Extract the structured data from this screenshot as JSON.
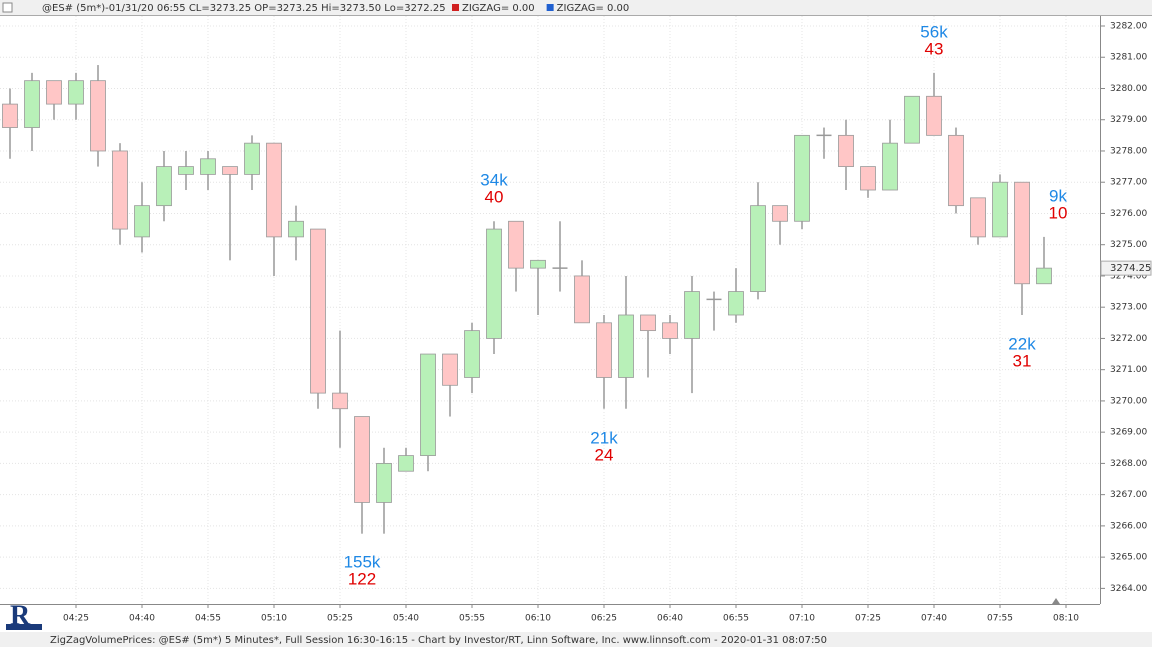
{
  "chart_data": {
    "type": "candlestick",
    "header": "@ES# (5m*)-01/31/20 06:55 CL=3273.25 OP=3273.25 Hi=3273.50 Lo=3272.25",
    "legend": [
      {
        "name": "ZIGZAG= 0.00",
        "color": "#d02020"
      },
      {
        "name": "ZIGZAG= 0.00",
        "color": "#2060d0"
      }
    ],
    "footer": "ZigZagVolumePrices: @ES# (5m*) 5 Minutes*, Full Session 16:30-16:15 - Chart by Investor/RT, Linn Software, Inc. www.linnsoft.com - 2020-01-31 08:07:50",
    "categories": [
      null,
      null,
      null,
      "04:25",
      null,
      null,
      "04:40",
      null,
      null,
      "04:55",
      null,
      null,
      "05:10",
      null,
      null,
      "05:25",
      null,
      null,
      "05:40",
      null,
      null,
      "05:55",
      null,
      null,
      "06:10",
      null,
      null,
      "06:25",
      null,
      null,
      "06:40",
      null,
      null,
      "06:55",
      null,
      null,
      "07:10",
      null,
      null,
      "07:25",
      null,
      null,
      "07:40",
      null,
      null,
      "07:55",
      null,
      null,
      "08:10"
    ],
    "open": [
      3279.5,
      3278.75,
      3280.25,
      3279.5,
      3280.25,
      3278.0,
      3275.25,
      3276.25,
      3277.25,
      3277.25,
      3277.5,
      3277.25,
      3278.25,
      3275.25,
      3275.5,
      3270.25,
      3269.5,
      3266.75,
      3267.75,
      3268.25,
      3271.5,
      3270.75,
      3272.0,
      3275.75,
      3274.25,
      3274.25,
      3274.0,
      3272.5,
      3270.75,
      3272.75,
      3272.5,
      3272.0,
      3273.25,
      3272.75,
      3273.5,
      3276.25,
      3275.75,
      3278.5,
      3278.5,
      3277.5,
      3276.75,
      3278.25,
      3279.75,
      3278.5,
      3276.5,
      3275.25,
      3277.0,
      3273.75,
      null
    ],
    "high": [
      3280.0,
      3280.5,
      3280.25,
      3280.5,
      3280.75,
      3278.25,
      3277.0,
      3278.0,
      3278.0,
      3278.0,
      3277.5,
      3278.5,
      3278.25,
      3276.25,
      3275.5,
      3272.25,
      3269.5,
      3268.5,
      3268.5,
      3271.5,
      3271.5,
      3272.5,
      3275.75,
      3275.75,
      3274.5,
      3275.75,
      3274.5,
      3272.75,
      3274.0,
      3272.75,
      3272.75,
      3274.0,
      3273.5,
      3274.25,
      3277.0,
      3276.25,
      3278.5,
      3278.75,
      3279.0,
      3277.5,
      3279.0,
      3279.75,
      3280.5,
      3278.75,
      3276.5,
      3277.25,
      3277.0,
      3275.25,
      null
    ],
    "low": [
      3277.75,
      3278.0,
      3279.0,
      3279.0,
      3277.5,
      3275.0,
      3274.75,
      3275.75,
      3276.75,
      3276.75,
      3274.5,
      3276.75,
      3274.0,
      3274.5,
      3269.75,
      3268.5,
      3265.75,
      3265.75,
      3267.75,
      3267.75,
      3269.5,
      3270.25,
      3271.5,
      3273.5,
      3272.75,
      3273.5,
      3272.5,
      3269.75,
      3269.75,
      3270.75,
      3271.5,
      3270.25,
      3272.25,
      3272.5,
      3273.25,
      3275.0,
      3275.5,
      3277.75,
      3276.75,
      3276.5,
      3276.75,
      3278.25,
      3278.5,
      3276.0,
      3275.0,
      3275.25,
      3272.75,
      3273.75,
      null
    ],
    "close": [
      3278.75,
      3280.25,
      3279.5,
      3280.25,
      3278.0,
      3275.5,
      3276.25,
      3277.5,
      3277.5,
      3277.75,
      3277.25,
      3278.25,
      3275.25,
      3275.75,
      3270.25,
      3269.75,
      3266.75,
      3268.0,
      3268.25,
      3271.5,
      3270.5,
      3272.25,
      3275.5,
      3274.25,
      3274.5,
      3274.25,
      3272.5,
      3270.75,
      3272.75,
      3272.25,
      3272.0,
      3273.5,
      3273.25,
      3273.5,
      3276.25,
      3275.75,
      3278.5,
      3278.5,
      3277.5,
      3276.75,
      3278.25,
      3279.75,
      3278.5,
      3276.25,
      3275.25,
      3277.0,
      3273.75,
      3274.25,
      null
    ],
    "up_color": "#b8f0b8",
    "down_color": "#ffc6c6",
    "wick_color": "#999999",
    "ylim": [
      3263.5,
      3282.32
    ],
    "yticks": [
      {
        "value": 3264,
        "label": "3264.00"
      },
      {
        "value": 3265,
        "label": "3265.00"
      },
      {
        "value": 3266,
        "label": "3266.00"
      },
      {
        "value": 3267,
        "label": "3267.00"
      },
      {
        "value": 3268,
        "label": "3268.00"
      },
      {
        "value": 3269,
        "label": "3269.00"
      },
      {
        "value": 3270,
        "label": "3270.00"
      },
      {
        "value": 3271,
        "label": "3271.00"
      },
      {
        "value": 3272,
        "label": "3272.00"
      },
      {
        "value": 3273,
        "label": "3273.00"
      },
      {
        "value": 3274,
        "label": "3274.00"
      },
      {
        "value": 3275,
        "label": "3275.00"
      },
      {
        "value": 3276,
        "label": "3276.00"
      },
      {
        "value": 3277,
        "label": "3277.00"
      },
      {
        "value": 3278,
        "label": "3278.00"
      },
      {
        "value": 3279,
        "label": "3279.00"
      },
      {
        "value": 3280,
        "label": "3280.00"
      },
      {
        "value": 3281,
        "label": "3281.00"
      },
      {
        "value": 3282,
        "label": "3282.00"
      }
    ],
    "last_price": {
      "value": 3274.25,
      "label": "3274.25"
    },
    "annotations": [
      {
        "volume": "155k",
        "count": "122"
      },
      {
        "volume": "34k",
        "count": "40"
      },
      {
        "volume": "21k",
        "count": "24"
      },
      {
        "volume": "56k",
        "count": "43"
      },
      {
        "volume": "22k",
        "count": "31"
      },
      {
        "volume": "9k",
        "count": "10"
      }
    ],
    "volume_color": "#1e88e5",
    "count_color": "#e00000"
  }
}
